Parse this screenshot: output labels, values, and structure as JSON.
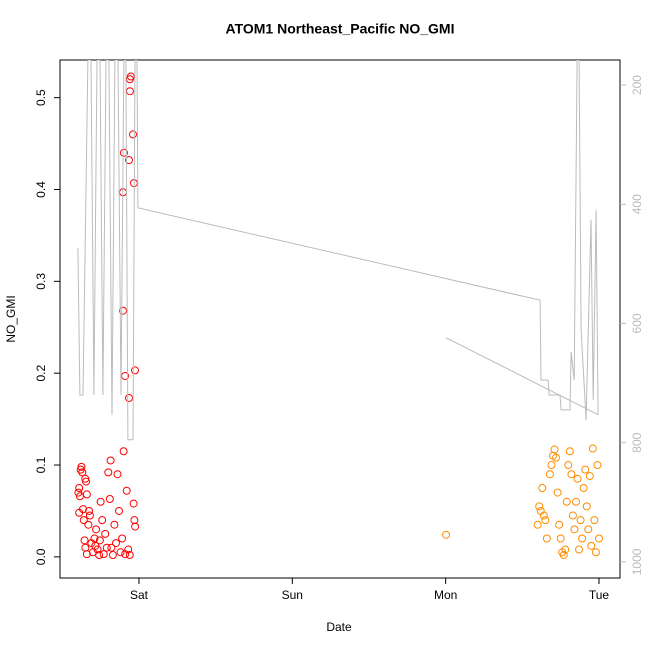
{
  "chart_data": {
    "type": "scatter",
    "title": "ATOM1 Northeast_Pacific NO_GMI",
    "x_label": "Date",
    "y_label": "NO_GMI",
    "xlim": [
      0.485,
      4.137
    ],
    "xticks": [
      {
        "value": 1,
        "label": "Sat"
      },
      {
        "value": 2,
        "label": "Sun"
      },
      {
        "value": 3,
        "label": "Mon"
      },
      {
        "value": 4,
        "label": "Tue"
      }
    ],
    "ylim": [
      -0.023,
      0.541
    ],
    "yticks": [
      {
        "value": 0,
        "label": "0.0"
      },
      0.1,
      0.2,
      0.3,
      0.4,
      0.5
    ],
    "y2lim": [
      1027,
      158
    ],
    "y2ticks": [
      200,
      400,
      600,
      800,
      1000
    ],
    "y2_color": "#bbbbbb",
    "series": [
      {
        "color": "#ff0000",
        "x": [
          0.605,
          0.61,
          0.615,
          0.62,
          0.625,
          0.63,
          0.61,
          0.635,
          0.64,
          0.65,
          0.655,
          0.66,
          0.645,
          0.65,
          0.66,
          0.67,
          0.675,
          0.68,
          0.69,
          0.7,
          0.71,
          0.715,
          0.72,
          0.73,
          0.74,
          0.745,
          0.75,
          0.76,
          0.77,
          0.78,
          0.79,
          0.8,
          0.81,
          0.815,
          0.82,
          0.83,
          0.84,
          0.85,
          0.86,
          0.87,
          0.88,
          0.89,
          0.9,
          0.91,
          0.92,
          0.93,
          0.94,
          0.965,
          0.97,
          0.975,
          0.941,
          0.947,
          0.941,
          0.961,
          0.902,
          0.935,
          0.896,
          0.967,
          0.896,
          0.909,
          0.974,
          0.935
        ],
        "values": [
          0.07,
          0.075,
          0.066,
          0.095,
          0.098,
          0.092,
          0.048,
          0.052,
          0.04,
          0.085,
          0.082,
          0.068,
          0.018,
          0.01,
          0.003,
          0.035,
          0.05,
          0.045,
          0.015,
          0.005,
          0.02,
          0.012,
          0.03,
          0.008,
          0.002,
          0.018,
          0.06,
          0.04,
          0.003,
          0.025,
          0.01,
          0.092,
          0.063,
          0.105,
          0.01,
          0.002,
          0.035,
          0.015,
          0.09,
          0.05,
          0.005,
          0.02,
          0.115,
          0.003,
          0.072,
          0.008,
          0.002,
          0.058,
          0.04,
          0.033,
          0.52,
          0.523,
          0.507,
          0.46,
          0.44,
          0.432,
          0.397,
          0.407,
          0.268,
          0.197,
          0.203,
          0.173
        ]
      },
      {
        "color": "#ff8c00",
        "x": [
          3.003,
          3.6,
          3.61,
          3.62,
          3.63,
          3.64,
          3.65,
          3.66,
          3.68,
          3.69,
          3.7,
          3.71,
          3.72,
          3.73,
          3.74,
          3.75,
          3.76,
          3.77,
          3.78,
          3.79,
          3.8,
          3.81,
          3.82,
          3.83,
          3.84,
          3.85,
          3.86,
          3.87,
          3.88,
          3.89,
          3.9,
          3.91,
          3.92,
          3.93,
          3.94,
          3.95,
          3.96,
          3.97,
          3.98,
          3.99,
          4.0
        ],
        "values": [
          0.024,
          0.035,
          0.055,
          0.05,
          0.075,
          0.045,
          0.04,
          0.02,
          0.09,
          0.1,
          0.11,
          0.117,
          0.108,
          0.07,
          0.035,
          0.02,
          0.005,
          0.002,
          0.008,
          0.06,
          0.1,
          0.115,
          0.09,
          0.045,
          0.03,
          0.06,
          0.085,
          0.008,
          0.04,
          0.02,
          0.075,
          0.095,
          0.055,
          0.03,
          0.088,
          0.012,
          0.118,
          0.04,
          0.005,
          0.1,
          0.02
        ]
      },
      {
        "type": "line",
        "axis": "y2",
        "color": "#bbbbbb",
        "x": [
          0.602,
          0.615,
          0.635,
          0.667,
          0.687,
          0.706,
          0.726,
          0.746,
          0.765,
          0.785,
          0.804,
          0.824,
          0.843,
          0.863,
          0.883,
          0.902,
          0.915,
          0.928,
          0.961,
          0.974,
          0.987,
          0.993,
          3.616,
          3.622,
          3.668,
          3.675,
          3.746,
          3.753,
          3.811,
          3.818,
          3.838,
          3.857,
          3.87,
          3.883,
          3.916,
          3.948,
          3.962,
          3.981,
          3.994,
          null,
          3.003,
          3.994
        ],
        "values": [
          473,
          720,
          720,
          158,
          158,
          720,
          158,
          158,
          720,
          158,
          158,
          753,
          158,
          158,
          720,
          158,
          158,
          795,
          795,
          158,
          158,
          406,
          561,
          695,
          695,
          720,
          720,
          745,
          745,
          648,
          695,
          158,
          158,
          611,
          762,
          426,
          728,
          410,
          753,
          null,
          624,
          753
        ]
      }
    ]
  }
}
